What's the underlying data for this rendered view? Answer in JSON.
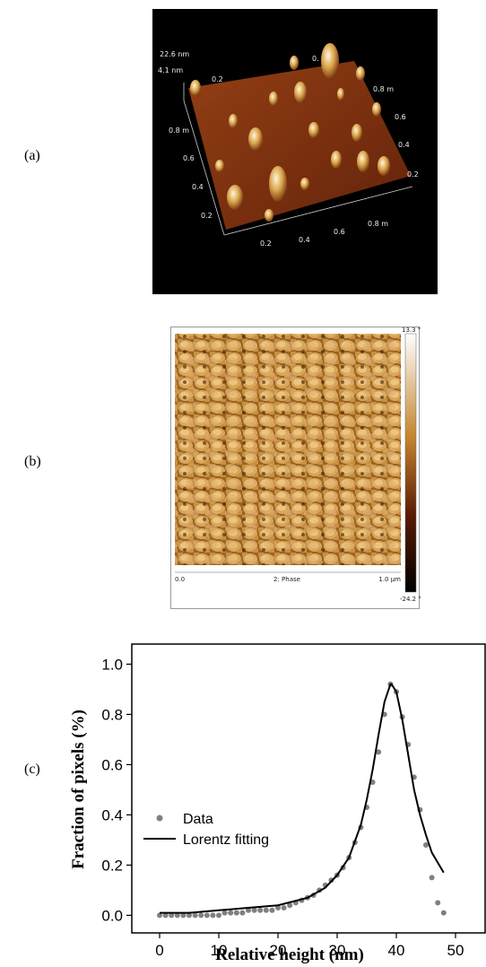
{
  "panel_labels": [
    "(a)",
    "(b)",
    "(c)"
  ],
  "afm_3d": {
    "z_labels": [
      "22.6 nm",
      "4.1 nm"
    ],
    "left_axis": [
      "0.8 m",
      "0.6",
      "0.4",
      "0.2"
    ],
    "back_axis": [
      "0.2",
      "0."
    ],
    "right_axis": [
      "0.8 m",
      "0.6",
      "0.4",
      "0.2"
    ],
    "front_axis": [
      "0.2",
      "0.4",
      "0.6",
      "0.8 m"
    ]
  },
  "afm_phase": {
    "scale_max": "13.3 °",
    "scale_min": "-24.2 °",
    "x_start": "0.0",
    "channel": "2: Phase",
    "x_end": "1.0 µm"
  },
  "chart_data": {
    "type": "scatter",
    "xlabel": "Relative height (nm)",
    "ylabel": "Fraction of pixels (%)",
    "xlim": [
      -4.7,
      55
    ],
    "ylim": [
      -0.07,
      1.08
    ],
    "xticks": [
      0,
      10,
      20,
      30,
      40,
      50
    ],
    "yticks": [
      {
        "value": 0,
        "label": "0.0"
      },
      0.2,
      0.4,
      0.6,
      0.8,
      {
        "value": 1,
        "label": "1.0"
      }
    ],
    "legend": "left",
    "series": [
      {
        "name": "Data",
        "type": "points",
        "color": "#808080",
        "x": [
          0,
          1,
          2,
          3,
          4,
          5,
          6,
          7,
          8,
          9,
          10,
          11,
          12,
          13,
          14,
          15,
          16,
          17,
          18,
          19,
          20,
          21,
          22,
          23,
          24,
          25,
          26,
          27,
          28,
          29,
          30,
          31,
          32,
          33,
          34,
          35,
          36,
          37,
          38,
          39,
          40,
          41,
          42,
          43,
          44,
          45,
          46,
          47,
          48
        ],
        "values": [
          0,
          0,
          0,
          0,
          0,
          0,
          0,
          0,
          0,
          0,
          0,
          0.01,
          0.01,
          0.01,
          0.01,
          0.02,
          0.02,
          0.02,
          0.02,
          0.02,
          0.03,
          0.03,
          0.04,
          0.05,
          0.06,
          0.07,
          0.08,
          0.1,
          0.12,
          0.14,
          0.16,
          0.19,
          0.23,
          0.29,
          0.35,
          0.43,
          0.53,
          0.65,
          0.8,
          0.92,
          0.89,
          0.79,
          0.68,
          0.55,
          0.42,
          0.28,
          0.15,
          0.05,
          0.01
        ]
      },
      {
        "name": "Lorentz fitting",
        "type": "line",
        "color": "#000000",
        "x": [
          0,
          5,
          10,
          15,
          20,
          25,
          28,
          30,
          32,
          34,
          35,
          36,
          37,
          38,
          39,
          39.2,
          40,
          41,
          42,
          43,
          44,
          45,
          46,
          47,
          48
        ],
        "values": [
          0.01,
          0.01,
          0.02,
          0.03,
          0.04,
          0.07,
          0.11,
          0.16,
          0.23,
          0.36,
          0.46,
          0.58,
          0.72,
          0.85,
          0.92,
          0.92,
          0.89,
          0.78,
          0.64,
          0.5,
          0.4,
          0.32,
          0.25,
          0.21,
          0.17
        ]
      }
    ]
  }
}
